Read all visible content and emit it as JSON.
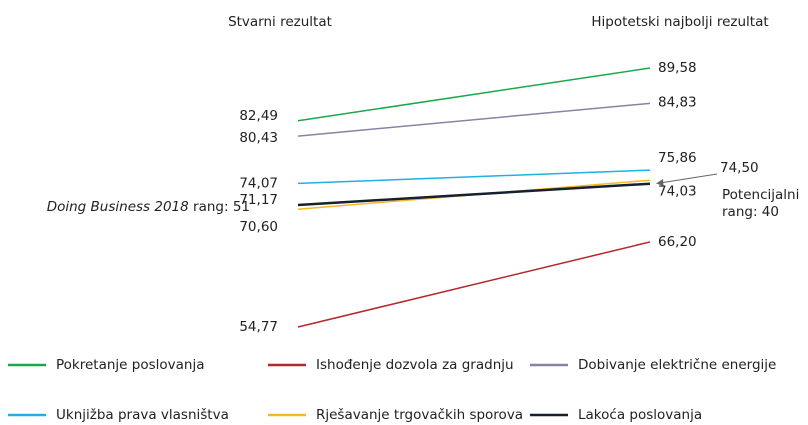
{
  "chart_data": {
    "type": "slope",
    "categories": [
      "Stvarni rezultat",
      "Hipotetski najbolji rezultat"
    ],
    "series": [
      {
        "name": "Pokretanje poslovanja",
        "color": "#1ba84b",
        "values": [
          82.49,
          89.58
        ],
        "value_labels": [
          "82,49",
          "89,58"
        ]
      },
      {
        "name": "Ishođenje dozvola za gradnju",
        "color": "#b4272d",
        "values": [
          54.77,
          66.2
        ],
        "value_labels": [
          "54,77",
          "66,20"
        ]
      },
      {
        "name": "Dobivanje električne energije",
        "color": "#8584a3",
        "values": [
          80.43,
          84.83
        ],
        "value_labels": [
          "80,43",
          "84,83"
        ]
      },
      {
        "name": "Uknjižba prava vlasništva",
        "color": "#1db1e7",
        "values": [
          74.07,
          75.86
        ],
        "value_labels": [
          "74,07",
          "75,86"
        ]
      },
      {
        "name": "Rješavanje trgovačkih sporova",
        "color": "#f6b925",
        "values": [
          70.6,
          74.5
        ],
        "value_labels": [
          "70,60",
          "74,50"
        ]
      },
      {
        "name": "Lakoća poslovanja",
        "color": "#17202f",
        "values": [
          71.17,
          74.03
        ],
        "value_labels": [
          "71,17",
          "74,03"
        ]
      }
    ],
    "annotations": {
      "left_rank_italic": "Doing Business 2018",
      "left_rank": "rang: 51",
      "right_rank_line1": "Potencijalni",
      "right_rank_line2": "rang: 40"
    }
  }
}
